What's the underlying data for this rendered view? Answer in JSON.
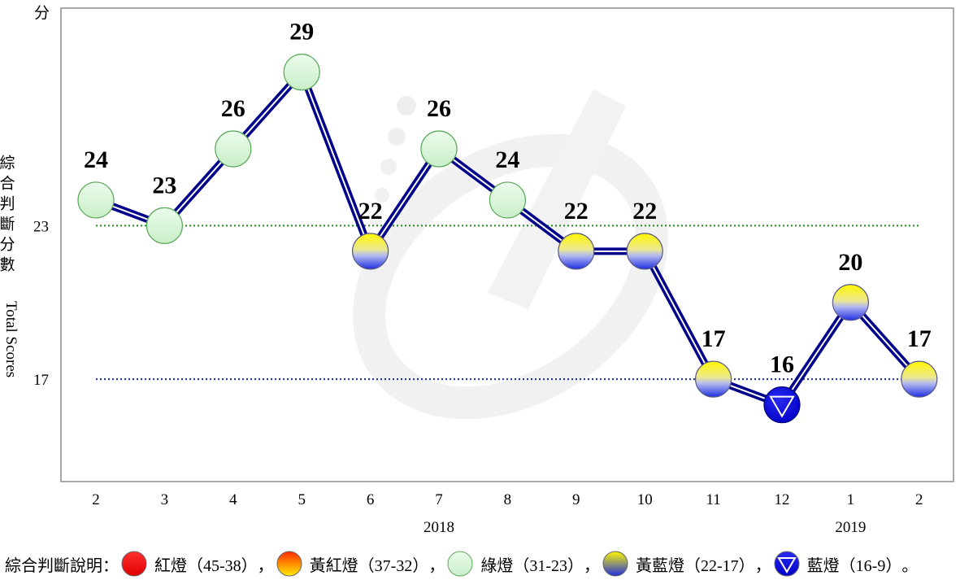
{
  "chart_data": {
    "type": "line",
    "y_unit_label": "分",
    "ylabel_zh": "綜合判斷分數",
    "ylabel_en": "Total Scores",
    "yticks": [
      23,
      17
    ],
    "ylim": [
      13,
      31.5
    ],
    "x": [
      "2",
      "3",
      "4",
      "5",
      "6",
      "7",
      "8",
      "9",
      "10",
      "11",
      "12",
      "1",
      "2"
    ],
    "year_labels": [
      {
        "label": "2018",
        "at": "7"
      },
      {
        "label": "2019",
        "at": "1"
      }
    ],
    "values": [
      24,
      23,
      26,
      29,
      22,
      26,
      24,
      22,
      22,
      17,
      16,
      20,
      17
    ],
    "signals": [
      "green",
      "green",
      "green",
      "green",
      "yellow-blue",
      "green",
      "green",
      "yellow-blue",
      "yellow-blue",
      "yellow-blue",
      "blue",
      "yellow-blue",
      "yellow-blue"
    ],
    "reference_lines": [
      {
        "value": 23,
        "color": "#1a8a1a"
      },
      {
        "value": 17,
        "color": "#1a2a9a"
      }
    ],
    "line_color": "#00008b",
    "grid": false
  },
  "legend": {
    "title": "綜合判斷說明：",
    "items": [
      {
        "kind": "red",
        "label": "紅燈（45-38）",
        "sep": "，"
      },
      {
        "kind": "yellow-red",
        "label": "黃紅燈（37-32）",
        "sep": "，"
      },
      {
        "kind": "green",
        "label": "綠燈（31-23）",
        "sep": "，"
      },
      {
        "kind": "yellow-blue",
        "label": "黃藍燈（22-17）",
        "sep": "，"
      },
      {
        "kind": "blue",
        "label": "藍燈（16-9）",
        "sep": "。"
      }
    ]
  }
}
